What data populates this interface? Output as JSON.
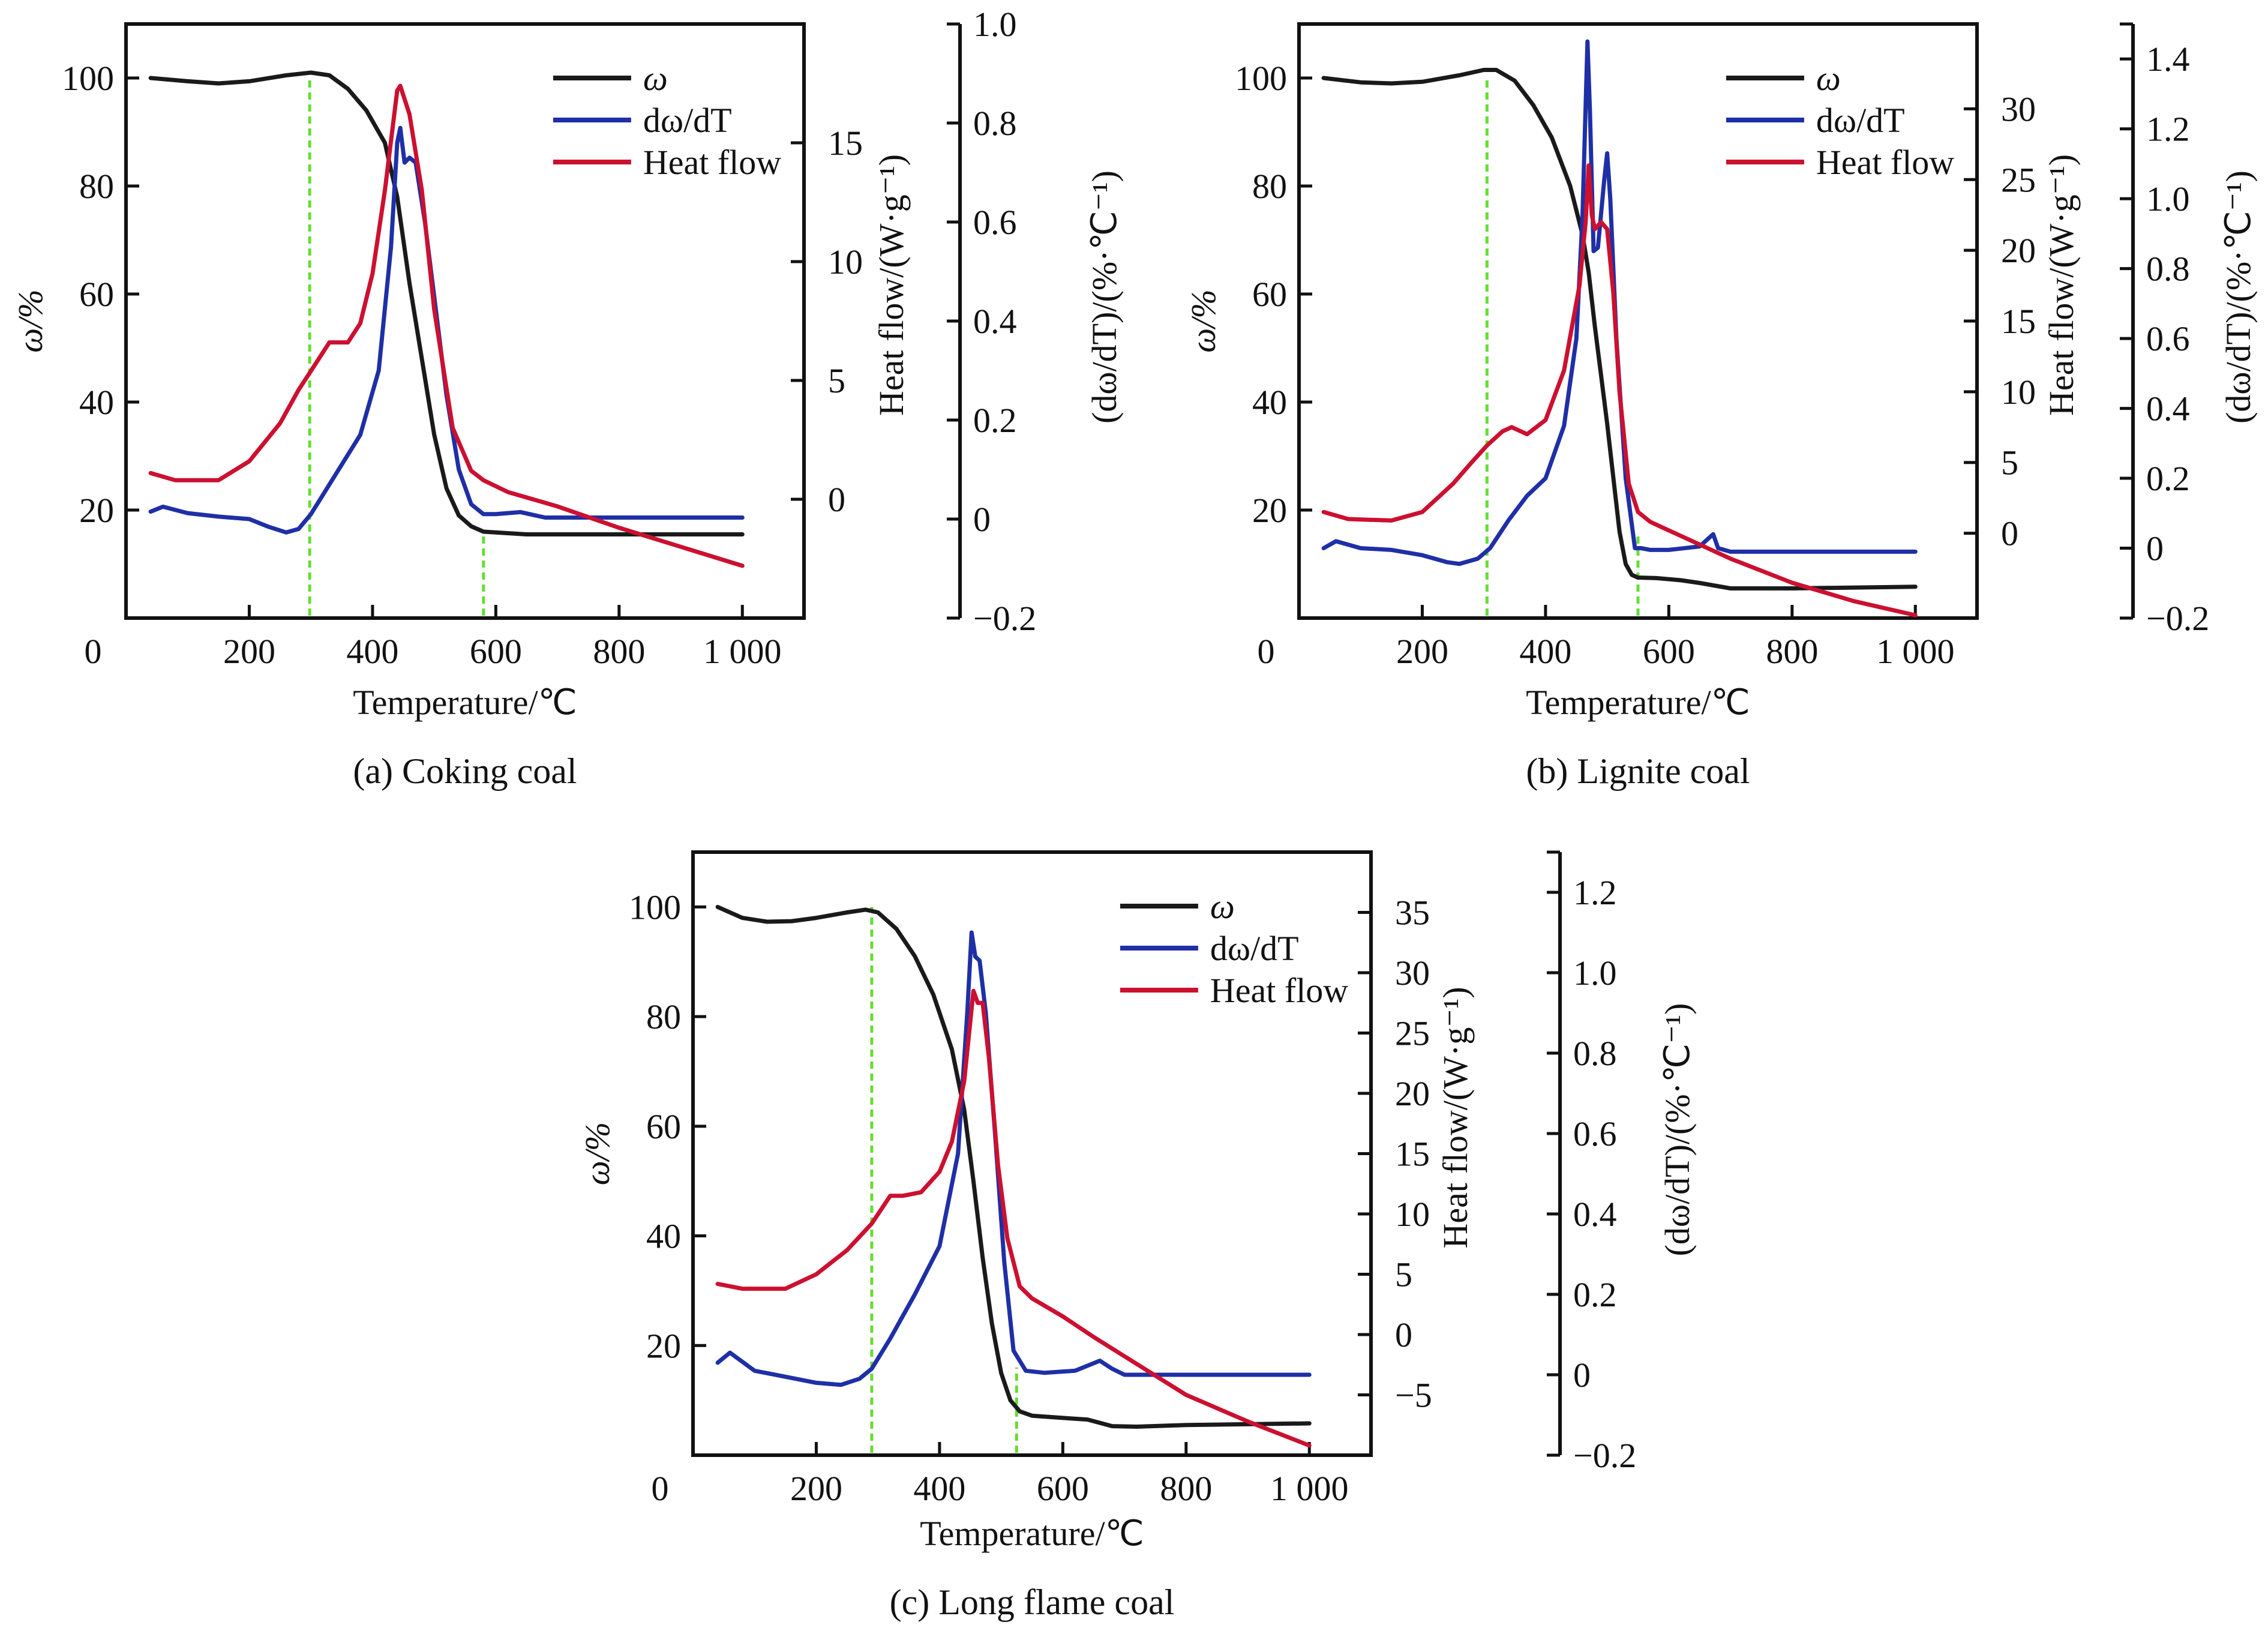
{
  "figure": {
    "panels": [
      "a",
      "b",
      "c"
    ]
  },
  "colors": {
    "omega": "#1a1a1a",
    "dwdt": "#1f2fa6",
    "heat_flow": "#cc1030",
    "guide": "#66dd33",
    "axis": "#111111"
  },
  "chart_data": [
    {
      "type": "line",
      "caption": "(a) Coking coal",
      "xlabel": "Temperature/℃",
      "ylabel_left": "ω/%",
      "ylabel_right1": "Heat flow/(W·g⁻¹)",
      "ylabel_right2": "(dω/dT)/(%·℃⁻¹)",
      "xlim": [
        0,
        1100
      ],
      "x_ticks": [
        0,
        200,
        400,
        600,
        800,
        1000
      ],
      "x_tick_labels": [
        "0",
        "200",
        "400",
        "600",
        "800",
        "1 000"
      ],
      "ylim_left": [
        0,
        110
      ],
      "y_left_ticks": [
        20,
        40,
        60,
        80,
        100
      ],
      "y_left_tick_labels": [
        "20",
        "40",
        "60",
        "80",
        "100"
      ],
      "ylim_heat_flow": [
        -5,
        20
      ],
      "heat_flow_ticks": [
        0,
        5,
        10,
        15
      ],
      "heat_flow_tick_labels": [
        "0",
        "5",
        "10",
        "15"
      ],
      "ylim_dwdt": [
        -0.2,
        1.0
      ],
      "dwdt_ticks": [
        -0.2,
        0,
        0.2,
        0.4,
        0.6,
        0.8,
        1.0
      ],
      "dwdt_tick_labels": [
        "−0.2",
        "0",
        "0.2",
        "0.4",
        "0.6",
        "0.8",
        "1.0"
      ],
      "guide_lines_x": [
        298,
        580
      ],
      "legend": [
        "ω",
        "dω/dT",
        "Heat flow"
      ],
      "legend_position": "top-right",
      "grid": false,
      "series": [
        {
          "name": "ω",
          "axis": "left",
          "x": [
            40,
            100,
            150,
            200,
            260,
            300,
            330,
            360,
            390,
            420,
            440,
            460,
            480,
            500,
            520,
            540,
            560,
            580,
            650,
            800,
            1000
          ],
          "y": [
            100,
            99.4,
            99,
            99.4,
            100.5,
            101,
            100.5,
            98,
            94,
            88,
            78,
            62,
            48,
            34,
            24,
            19,
            17,
            16,
            15.5,
            15.5,
            15.5
          ]
        },
        {
          "name": "dω/dT",
          "axis": "dwdt",
          "x": [
            40,
            60,
            100,
            150,
            200,
            230,
            260,
            280,
            300,
            340,
            380,
            410,
            430,
            440,
            445,
            452,
            460,
            470,
            485,
            500,
            520,
            540,
            560,
            580,
            600,
            640,
            680,
            1000
          ],
          "y": [
            0.015,
            0.025,
            0.012,
            0.005,
            0.0,
            -0.015,
            -0.027,
            -0.02,
            0.01,
            0.09,
            0.17,
            0.3,
            0.55,
            0.76,
            0.79,
            0.72,
            0.73,
            0.72,
            0.6,
            0.45,
            0.25,
            0.1,
            0.03,
            0.01,
            0.01,
            0.014,
            0.003,
            0.003
          ]
        },
        {
          "name": "Heat flow",
          "axis": "heat_flow",
          "x": [
            40,
            80,
            150,
            200,
            250,
            280,
            300,
            330,
            360,
            380,
            400,
            420,
            440,
            445,
            460,
            480,
            500,
            530,
            560,
            580,
            620,
            700,
            800,
            900,
            1000
          ],
          "y": [
            1.1,
            0.8,
            0.8,
            1.6,
            3.2,
            4.6,
            5.4,
            6.6,
            6.6,
            7.4,
            9.5,
            13.0,
            17.2,
            17.4,
            16.2,
            13.0,
            8.0,
            3.0,
            1.2,
            0.8,
            0.3,
            -0.3,
            -1.2,
            -2.0,
            -2.8
          ]
        }
      ]
    },
    {
      "type": "line",
      "caption": "(b) Lignite coal",
      "xlabel": "Temperature/℃",
      "ylabel_left": "ω/%",
      "ylabel_right1": "Heat flow/(W·g⁻¹)",
      "ylabel_right2": "(dω/dT)/(%·℃⁻¹)",
      "xlim": [
        0,
        1100
      ],
      "x_ticks": [
        0,
        200,
        400,
        600,
        800,
        1000
      ],
      "x_tick_labels": [
        "0",
        "200",
        "400",
        "600",
        "800",
        "1 000"
      ],
      "ylim_left": [
        0,
        110
      ],
      "y_left_ticks": [
        20,
        40,
        60,
        80,
        100
      ],
      "y_left_tick_labels": [
        "20",
        "40",
        "60",
        "80",
        "100"
      ],
      "ylim_heat_flow": [
        -6,
        36
      ],
      "heat_flow_ticks": [
        0,
        5,
        10,
        15,
        20,
        25,
        30
      ],
      "heat_flow_tick_labels": [
        "0",
        "5",
        "10",
        "15",
        "20",
        "25",
        "30"
      ],
      "ylim_dwdt": [
        -0.2,
        1.5
      ],
      "dwdt_ticks": [
        -0.2,
        0,
        0.2,
        0.4,
        0.6,
        0.8,
        1.0,
        1.2,
        1.4
      ],
      "dwdt_tick_labels": [
        "−0.2",
        "0",
        "0.2",
        "0.4",
        "0.6",
        "0.8",
        "1.0",
        "1.2",
        "1.4"
      ],
      "guide_lines_x": [
        305,
        550
      ],
      "legend": [
        "ω",
        "dω/dT",
        "Heat flow"
      ],
      "legend_position": "top-right",
      "grid": false,
      "series": [
        {
          "name": "ω",
          "axis": "left",
          "x": [
            40,
            100,
            150,
            200,
            260,
            300,
            320,
            350,
            380,
            410,
            440,
            460,
            470,
            480,
            490,
            500,
            510,
            520,
            530,
            540,
            550,
            580,
            620,
            650,
            700,
            800,
            1000
          ],
          "y": [
            100,
            99.2,
            99,
            99.3,
            100.5,
            101.5,
            101.5,
            99.5,
            95,
            89,
            80,
            71,
            64,
            54,
            45,
            36,
            26,
            16,
            10,
            8,
            7.5,
            7.4,
            7.0,
            6.5,
            5.5,
            5.5,
            5.8
          ]
        },
        {
          "name": "dω/dT",
          "axis": "dwdt",
          "x": [
            40,
            60,
            100,
            150,
            200,
            240,
            260,
            290,
            310,
            340,
            370,
            400,
            430,
            450,
            460,
            468,
            472,
            478,
            485,
            495,
            500,
            505,
            515,
            530,
            545,
            555,
            570,
            600,
            650,
            672,
            680,
            700,
            1000
          ],
          "y": [
            0.0,
            0.02,
            0.0,
            -0.005,
            -0.02,
            -0.04,
            -0.045,
            -0.03,
            0.0,
            0.08,
            0.15,
            0.2,
            0.35,
            0.6,
            0.95,
            1.45,
            1.25,
            0.85,
            0.86,
            1.05,
            1.13,
            1.0,
            0.6,
            0.2,
            0.0,
            0.0,
            -0.005,
            -0.005,
            0.005,
            0.04,
            0.0,
            -0.01,
            -0.01
          ]
        },
        {
          "name": "Heat flow",
          "axis": "heat_flow",
          "x": [
            40,
            80,
            150,
            200,
            250,
            280,
            305,
            330,
            345,
            370,
            400,
            430,
            455,
            465,
            470,
            475,
            480,
            490,
            500,
            510,
            520,
            535,
            550,
            570,
            600,
            700,
            800,
            900,
            1000
          ],
          "y": [
            1.5,
            1.0,
            0.9,
            1.5,
            3.5,
            5.0,
            6.2,
            7.2,
            7.5,
            7.0,
            8.0,
            11.5,
            17.5,
            22.0,
            26.0,
            22.5,
            21.5,
            22.0,
            21.5,
            17.0,
            10.0,
            3.5,
            1.5,
            0.8,
            0.2,
            -1.8,
            -3.5,
            -4.8,
            -5.8
          ]
        }
      ]
    },
    {
      "type": "line",
      "caption": "(c) Long flame coal",
      "xlabel": "Temperature/℃",
      "ylabel_left": "ω/%",
      "ylabel_right1": "Heat flow/(W·g⁻¹)",
      "ylabel_right2": "(dω/dT)/(%·℃⁻¹)",
      "xlim": [
        0,
        1100
      ],
      "x_ticks": [
        0,
        200,
        400,
        600,
        800,
        1000
      ],
      "x_tick_labels": [
        "0",
        "200",
        "400",
        "600",
        "800",
        "1 000"
      ],
      "ylim_left": [
        0,
        110
      ],
      "y_left_ticks": [
        20,
        40,
        60,
        80,
        100
      ],
      "y_left_tick_labels": [
        "20",
        "40",
        "60",
        "80",
        "100"
      ],
      "ylim_heat_flow": [
        -10,
        40
      ],
      "heat_flow_ticks": [
        -5,
        0,
        5,
        10,
        15,
        20,
        25,
        30,
        35
      ],
      "heat_flow_tick_labels": [
        "−5",
        "0",
        "5",
        "10",
        "15",
        "20",
        "25",
        "30",
        "35"
      ],
      "ylim_dwdt": [
        -0.2,
        1.3
      ],
      "dwdt_ticks": [
        -0.2,
        0,
        0.2,
        0.4,
        0.6,
        0.8,
        1.0,
        1.2
      ],
      "dwdt_tick_labels": [
        "−0.2",
        "0",
        "0.2",
        "0.4",
        "0.6",
        "0.8",
        "1.0",
        "1.2"
      ],
      "guide_lines_x": [
        290,
        525
      ],
      "legend": [
        "ω",
        "dω/dT",
        "Heat flow"
      ],
      "legend_position": "top-right",
      "grid": false,
      "series": [
        {
          "name": "ω",
          "axis": "left",
          "x": [
            40,
            80,
            120,
            160,
            200,
            250,
            280,
            300,
            330,
            360,
            390,
            420,
            440,
            455,
            470,
            485,
            500,
            515,
            530,
            550,
            600,
            640,
            680,
            720,
            800,
            1000
          ],
          "y": [
            100,
            98,
            97.3,
            97.4,
            98,
            99,
            99.5,
            99,
            96,
            91,
            84,
            74,
            63,
            50,
            36,
            24,
            15,
            10,
            8,
            7.2,
            6.8,
            6.5,
            5.3,
            5.2,
            5.5,
            5.8
          ]
        },
        {
          "name": "dω/dT",
          "axis": "dwdt",
          "x": [
            40,
            60,
            100,
            150,
            200,
            240,
            270,
            290,
            320,
            360,
            400,
            430,
            445,
            452,
            458,
            465,
            475,
            490,
            505,
            520,
            540,
            570,
            620,
            660,
            680,
            700,
            1000
          ],
          "y": [
            0.03,
            0.055,
            0.01,
            -0.005,
            -0.02,
            -0.025,
            -0.01,
            0.015,
            0.09,
            0.2,
            0.32,
            0.55,
            0.9,
            1.1,
            1.04,
            1.03,
            0.9,
            0.6,
            0.28,
            0.06,
            0.01,
            0.005,
            0.01,
            0.035,
            0.015,
            0.0,
            0.0
          ]
        },
        {
          "name": "Heat flow",
          "axis": "heat_flow",
          "x": [
            40,
            80,
            150,
            200,
            250,
            290,
            320,
            340,
            370,
            400,
            420,
            440,
            455,
            462,
            470,
            480,
            495,
            510,
            530,
            550,
            600,
            650,
            700,
            800,
            900,
            1000
          ],
          "y": [
            4.2,
            3.8,
            3.8,
            5.0,
            7.0,
            9.2,
            11.5,
            11.5,
            11.8,
            13.5,
            16.0,
            21.0,
            28.5,
            27.5,
            27.5,
            23.0,
            14.0,
            8.0,
            4.0,
            3.0,
            1.5,
            -0.2,
            -1.8,
            -5.0,
            -7.2,
            -9.2
          ]
        }
      ]
    }
  ]
}
